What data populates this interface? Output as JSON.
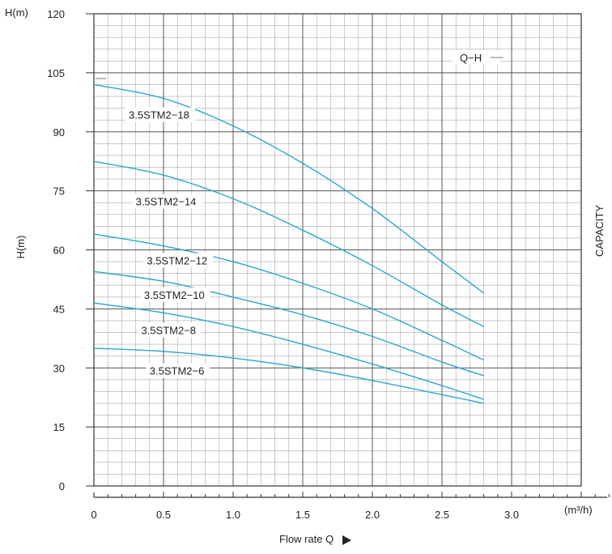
{
  "chart_data": {
    "type": "line",
    "title": "",
    "xlabel": "Flow rate Q",
    "x_unit": "(m³/h)",
    "ylabel": "H(m)",
    "y_unit_top": "H(m)",
    "right_label": "CAPACITY",
    "legend_text": "Q−H",
    "xlim": [
      0,
      3.5
    ],
    "ylim": [
      0,
      120
    ],
    "x_ticks": [
      0,
      0.5,
      1.0,
      1.5,
      2.0,
      2.5,
      3.0
    ],
    "x_tick_labels": [
      "0",
      "0.5",
      "1.0",
      "1.5",
      "2.0",
      "2.5",
      "3.0"
    ],
    "y_ticks": [
      0,
      15,
      30,
      45,
      60,
      75,
      90,
      105,
      120
    ],
    "y_tick_labels": [
      "0",
      "15",
      "30",
      "45",
      "60",
      "75",
      "90",
      "105",
      "120"
    ],
    "grid": true,
    "line_color": "#2aa7cf",
    "series": [
      {
        "name": "3.5STM2−18",
        "x": [
          0,
          0.5,
          1.0,
          1.5,
          2.0,
          2.5,
          2.8
        ],
        "y": [
          102.0,
          98.5,
          91.5,
          82.0,
          70.5,
          57.0,
          49.0
        ]
      },
      {
        "name": "3.5STM2−14",
        "x": [
          0,
          0.5,
          1.0,
          1.5,
          2.0,
          2.5,
          2.8
        ],
        "y": [
          82.5,
          79.0,
          73.0,
          65.0,
          56.0,
          46.0,
          40.5
        ]
      },
      {
        "name": "3.5STM2−12",
        "x": [
          0,
          0.5,
          1.0,
          1.5,
          2.0,
          2.5,
          2.8
        ],
        "y": [
          64.0,
          61.0,
          57.0,
          51.5,
          45.0,
          37.0,
          32.0
        ]
      },
      {
        "name": "3.5STM2−10",
        "x": [
          0,
          0.5,
          1.0,
          1.5,
          2.0,
          2.5,
          2.8
        ],
        "y": [
          54.5,
          52.0,
          48.0,
          43.5,
          38.0,
          31.5,
          28.0
        ]
      },
      {
        "name": "3.5STM2−8",
        "x": [
          0,
          0.5,
          1.0,
          1.5,
          2.0,
          2.5,
          2.8
        ],
        "y": [
          46.5,
          44.0,
          40.5,
          36.0,
          31.0,
          25.5,
          22.0
        ]
      },
      {
        "name": "3.5STM2−6",
        "x": [
          0,
          0.5,
          1.0,
          1.5,
          2.0,
          2.5,
          2.8
        ],
        "y": [
          35.0,
          34.2,
          32.5,
          30.0,
          26.8,
          23.2,
          21.0
        ]
      }
    ]
  }
}
